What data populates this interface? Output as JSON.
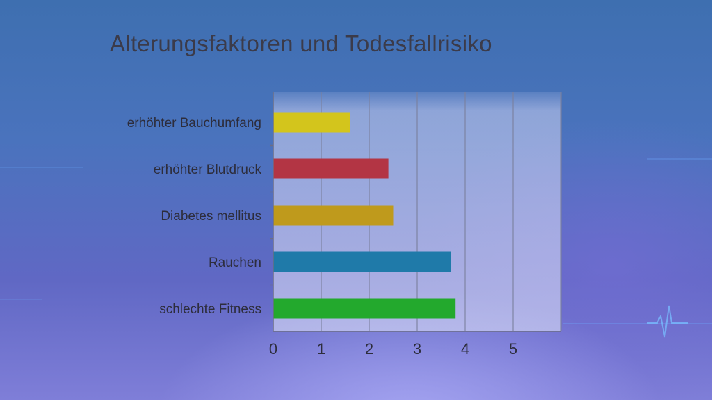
{
  "slide": {
    "title": "Alterungsfaktoren und Todesfallrisiko"
  },
  "chart_data": {
    "type": "bar",
    "orientation": "horizontal",
    "title": "Alterungsfaktoren und Todesfallrisiko",
    "xlabel": "",
    "ylabel": "",
    "categories": [
      "erhöhter Bauchumfang",
      "erhöhter Blutdruck",
      "Diabetes mellitus",
      "Rauchen",
      "schlechte Fitness"
    ],
    "values": [
      1.6,
      2.4,
      2.5,
      3.7,
      3.8
    ],
    "colors": [
      "#d3c51c",
      "#b33544",
      "#bf9a1c",
      "#1f7aa9",
      "#23a92d"
    ],
    "xlim": [
      0,
      6
    ],
    "xticks": [
      0,
      1,
      2,
      3,
      4,
      5
    ],
    "grid": true,
    "legend": "none"
  }
}
